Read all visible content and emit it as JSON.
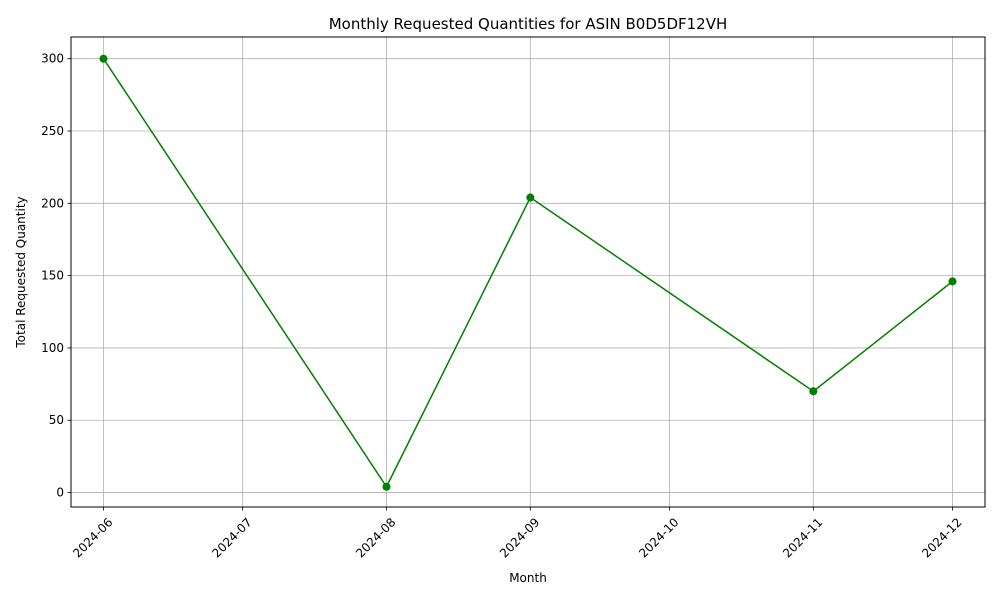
{
  "chart_data": {
    "type": "line",
    "title": "Monthly Requested Quantities for ASIN B0D5DF12VH",
    "xlabel": "Month",
    "ylabel": "Total Requested Quantity",
    "x_ticks": [
      "2024-06",
      "2024-07",
      "2024-08",
      "2024-09",
      "2024-10",
      "2024-11",
      "2024-12"
    ],
    "y_ticks": [
      0,
      50,
      100,
      150,
      200,
      250,
      300
    ],
    "ylim": [
      -10,
      315
    ],
    "xlim": [
      "2024-05-25",
      "2024-12-08"
    ],
    "grid": true,
    "series": [
      {
        "color": "#008000",
        "marker": "circle",
        "points": [
          {
            "x": "2024-06-01",
            "y": 300
          },
          {
            "x": "2024-08-01",
            "y": 4
          },
          {
            "x": "2024-09-01",
            "y": 204
          },
          {
            "x": "2024-11-01",
            "y": 70
          },
          {
            "x": "2024-12-01",
            "y": 146
          }
        ]
      }
    ]
  }
}
